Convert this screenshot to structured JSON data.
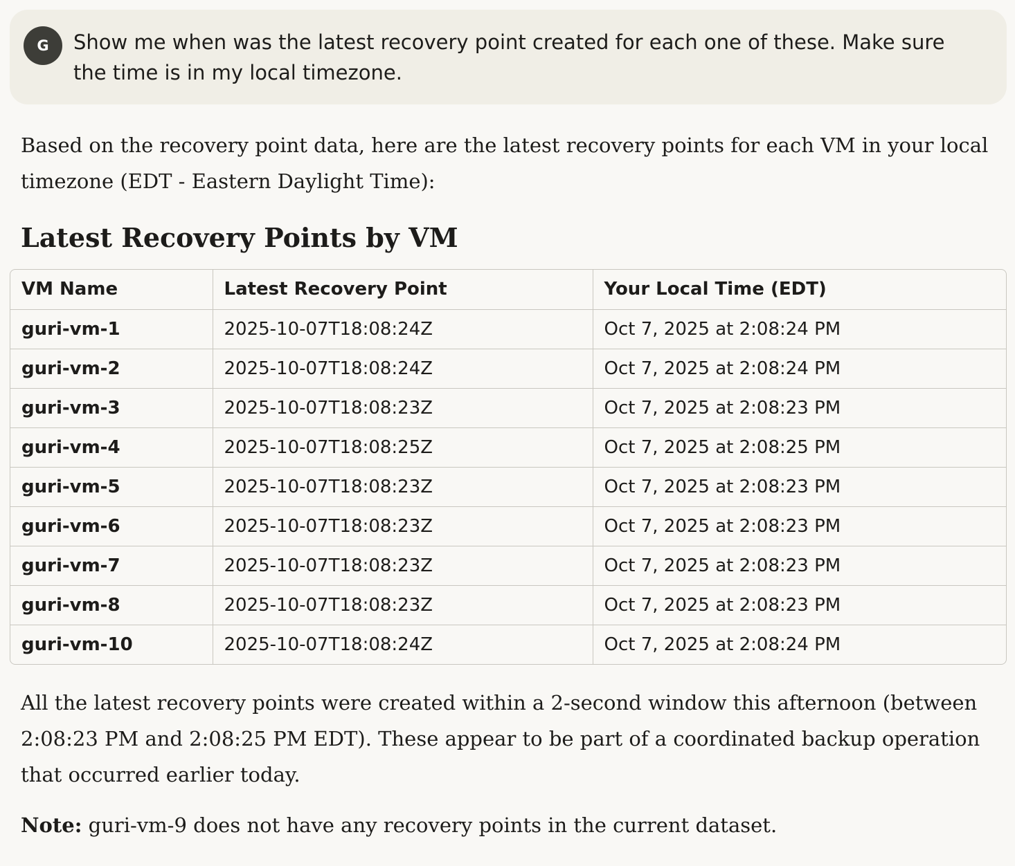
{
  "user_message": {
    "avatar_initial": "G",
    "text": "Show me when was the latest recovery point created for each one of these. Make sure the time is in my local timezone."
  },
  "response": {
    "intro": "Based on the recovery point data, here are the latest recovery points for each VM in your local timezone (EDT - Eastern Daylight Time):",
    "heading": "Latest Recovery Points by VM",
    "table": {
      "headers": [
        "VM Name",
        "Latest Recovery Point",
        "Your Local Time (EDT)"
      ],
      "rows": [
        [
          "guri-vm-1",
          "2025-10-07T18:08:24Z",
          "Oct 7, 2025 at 2:08:24 PM"
        ],
        [
          "guri-vm-2",
          "2025-10-07T18:08:24Z",
          "Oct 7, 2025 at 2:08:24 PM"
        ],
        [
          "guri-vm-3",
          "2025-10-07T18:08:23Z",
          "Oct 7, 2025 at 2:08:23 PM"
        ],
        [
          "guri-vm-4",
          "2025-10-07T18:08:25Z",
          "Oct 7, 2025 at 2:08:25 PM"
        ],
        [
          "guri-vm-5",
          "2025-10-07T18:08:23Z",
          "Oct 7, 2025 at 2:08:23 PM"
        ],
        [
          "guri-vm-6",
          "2025-10-07T18:08:23Z",
          "Oct 7, 2025 at 2:08:23 PM"
        ],
        [
          "guri-vm-7",
          "2025-10-07T18:08:23Z",
          "Oct 7, 2025 at 2:08:23 PM"
        ],
        [
          "guri-vm-8",
          "2025-10-07T18:08:23Z",
          "Oct 7, 2025 at 2:08:23 PM"
        ],
        [
          "guri-vm-10",
          "2025-10-07T18:08:24Z",
          "Oct 7, 2025 at 2:08:24 PM"
        ]
      ]
    },
    "summary": "All the latest recovery points were created within a 2-second window this afternoon (between 2:08:23 PM and 2:08:25 PM EDT). These appear to be part of a coordinated backup operation that occurred earlier today.",
    "note_label": "Note:",
    "note_text": " guri-vm-9 does not have any recovery points in the current dataset."
  }
}
